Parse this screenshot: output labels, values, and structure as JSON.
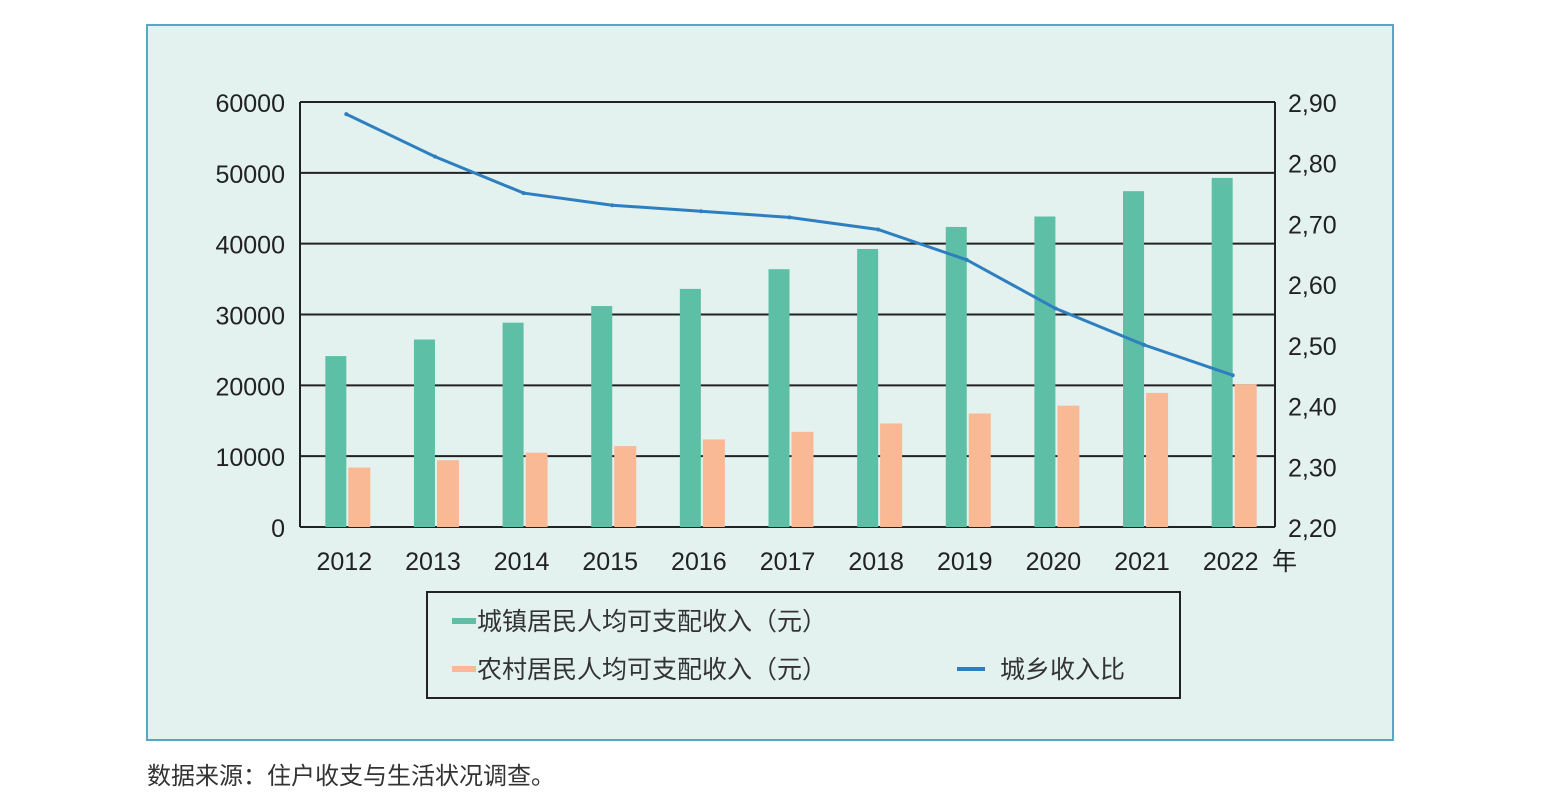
{
  "chart_data": {
    "type": "bar+line",
    "categories": [
      "2012",
      "2013",
      "2014",
      "2015",
      "2016",
      "2017",
      "2018",
      "2019",
      "2020",
      "2021",
      "2022"
    ],
    "x_unit": "年",
    "series": [
      {
        "name": "城镇居民人均可支配收入（元）",
        "type": "bar",
        "axis": "left",
        "color": "#5dbfa6",
        "values": [
          24127,
          26467,
          28844,
          31195,
          33616,
          36396,
          39251,
          42359,
          43834,
          47412,
          49283
        ]
      },
      {
        "name": "农村居民人均可支配收入（元）",
        "type": "bar",
        "axis": "left",
        "color": "#f9b994",
        "values": [
          8389,
          9430,
          10489,
          11422,
          12363,
          13432,
          14617,
          16021,
          17131,
          18931,
          20133
        ]
      },
      {
        "name": "城乡收入比",
        "type": "line",
        "axis": "right",
        "color": "#2e7fc0",
        "values": [
          2.88,
          2.81,
          2.75,
          2.73,
          2.72,
          2.71,
          2.69,
          2.64,
          2.56,
          2.5,
          2.45
        ]
      }
    ],
    "left_axis": {
      "ylim": [
        0,
        60000
      ],
      "ticks": [
        "0",
        "10000",
        "20000",
        "30000",
        "40000",
        "50000",
        "60000"
      ]
    },
    "right_axis": {
      "ylim": [
        2.2,
        2.9
      ],
      "ticks": [
        "2,20",
        "2,30",
        "2,40",
        "2,50",
        "2,60",
        "2,70",
        "2,80",
        "2,90"
      ]
    },
    "grid": true,
    "legend_position": "bottom"
  },
  "source_note": "数据来源：住户收支与生活状况调查。",
  "colors": {
    "panel_bg": "#e3f1ef",
    "panel_border": "#56a8c2"
  }
}
